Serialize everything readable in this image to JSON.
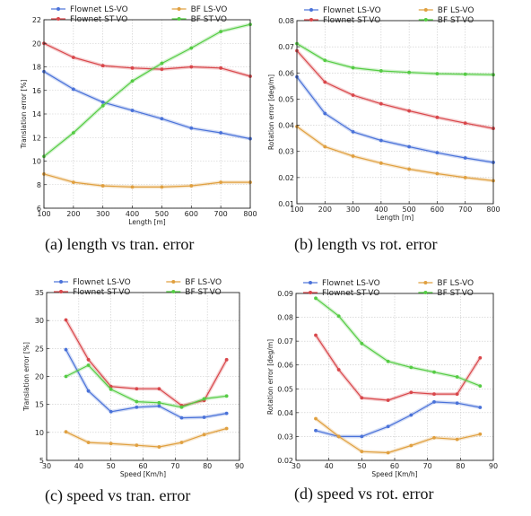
{
  "colors": {
    "flownet_ls": "#4a72d9",
    "flownet_st": "#d9474b",
    "bf_ls": "#e0a040",
    "bf_st": "#55cc44"
  },
  "chart_data": [
    {
      "id": "a",
      "type": "line",
      "caption": "(a) length vs tran. error",
      "xlabel": "Length [m]",
      "ylabel": "Translation error [%]",
      "xlim": [
        100,
        800
      ],
      "ylim": [
        6,
        22
      ],
      "xticks": [
        100,
        200,
        300,
        400,
        500,
        600,
        700,
        800
      ],
      "yticks": [
        6,
        8,
        10,
        12,
        14,
        16,
        18,
        20,
        22
      ],
      "ytick_decimals": 0,
      "grid": true,
      "legend": "top",
      "x": [
        100,
        200,
        300,
        400,
        500,
        600,
        700,
        800
      ],
      "series": [
        {
          "name": "Flownet LS-VO",
          "color": "#4a72d9",
          "values": [
            17.6,
            16.1,
            15.0,
            14.3,
            13.6,
            12.8,
            12.4,
            11.9
          ]
        },
        {
          "name": "BF LS-VO",
          "color": "#e0a040",
          "values": [
            8.9,
            8.2,
            7.9,
            7.8,
            7.8,
            7.9,
            8.2,
            8.2
          ]
        },
        {
          "name": "Flownet ST-VO",
          "color": "#d9474b",
          "values": [
            20.0,
            18.8,
            18.1,
            17.9,
            17.8,
            18.0,
            17.9,
            17.2
          ]
        },
        {
          "name": "BF ST-VO",
          "color": "#55cc44",
          "values": [
            10.4,
            12.4,
            14.7,
            16.8,
            18.3,
            19.6,
            21.0,
            21.6
          ]
        }
      ]
    },
    {
      "id": "b",
      "type": "line",
      "caption": "(b) length vs rot. error",
      "xlabel": "Length [m]",
      "ylabel": "Rotation error [deg/m]",
      "xlim": [
        100,
        800
      ],
      "ylim": [
        0.01,
        0.08
      ],
      "xticks": [
        100,
        200,
        300,
        400,
        500,
        600,
        700,
        800
      ],
      "yticks": [
        0.01,
        0.02,
        0.03,
        0.04,
        0.05,
        0.06,
        0.07,
        0.08
      ],
      "ytick_decimals": 2,
      "grid": true,
      "legend": "top",
      "x": [
        100,
        200,
        300,
        400,
        500,
        600,
        700,
        800
      ],
      "series": [
        {
          "name": "Flownet LS-VO",
          "color": "#4a72d9",
          "values": [
            0.0585,
            0.0445,
            0.0375,
            0.0342,
            0.0318,
            0.0295,
            0.0275,
            0.0258
          ]
        },
        {
          "name": "BF LS-VO",
          "color": "#e0a040",
          "values": [
            0.0395,
            0.0318,
            0.0282,
            0.0255,
            0.0232,
            0.0215,
            0.02,
            0.0188
          ]
        },
        {
          "name": "Flownet ST-VO",
          "color": "#d9474b",
          "values": [
            0.0685,
            0.0565,
            0.0515,
            0.0482,
            0.0455,
            0.043,
            0.0408,
            0.0388
          ]
        },
        {
          "name": "BF ST-VO",
          "color": "#55cc44",
          "values": [
            0.0712,
            0.0648,
            0.062,
            0.0608,
            0.0602,
            0.0597,
            0.0595,
            0.0593
          ]
        }
      ]
    },
    {
      "id": "c",
      "type": "line",
      "caption": "(c) speed vs tran. error",
      "xlabel": "Speed [Km/h]",
      "ylabel": "Translation error [%]",
      "xlim": [
        30,
        90
      ],
      "ylim": [
        5,
        35
      ],
      "xticks": [
        30,
        40,
        50,
        60,
        70,
        80,
        90
      ],
      "yticks": [
        5,
        10,
        15,
        20,
        25,
        30,
        35
      ],
      "ytick_decimals": 0,
      "grid": true,
      "legend": "top",
      "x": [
        36,
        43,
        50,
        58,
        65,
        72,
        79,
        86
      ],
      "series": [
        {
          "name": "Flownet LS-VO",
          "color": "#4a72d9",
          "values": [
            24.8,
            17.4,
            13.7,
            14.5,
            14.7,
            12.6,
            12.7,
            13.4
          ]
        },
        {
          "name": "BF LS-VO",
          "color": "#e0a040",
          "values": [
            10.1,
            8.2,
            8.0,
            7.7,
            7.4,
            8.2,
            9.6,
            10.7
          ]
        },
        {
          "name": "Flownet ST-VO",
          "color": "#d9474b",
          "values": [
            30.1,
            23.0,
            18.2,
            17.8,
            17.8,
            14.8,
            15.7,
            23.0
          ]
        },
        {
          "name": "BF ST-VO",
          "color": "#55cc44",
          "values": [
            20.0,
            22.0,
            17.7,
            15.5,
            15.3,
            14.5,
            16.0,
            16.5
          ]
        }
      ]
    },
    {
      "id": "d",
      "type": "line",
      "caption": "(d) speed vs rot. error",
      "xlabel": "Speed [Km/h]",
      "ylabel": "Rotation error [deg/m]",
      "xlim": [
        30,
        90
      ],
      "ylim": [
        0.02,
        0.09
      ],
      "xticks": [
        30,
        40,
        50,
        60,
        70,
        80,
        90
      ],
      "yticks": [
        0.02,
        0.03,
        0.04,
        0.05,
        0.06,
        0.07,
        0.08,
        0.09
      ],
      "ytick_decimals": 2,
      "grid": true,
      "legend": "top",
      "x": [
        36,
        43,
        50,
        58,
        65,
        72,
        79,
        86
      ],
      "series": [
        {
          "name": "Flownet LS-VO",
          "color": "#4a72d9",
          "values": [
            0.0325,
            0.03,
            0.03,
            0.0342,
            0.039,
            0.0445,
            0.044,
            0.0422
          ]
        },
        {
          "name": "BF LS-VO",
          "color": "#e0a040",
          "values": [
            0.0375,
            0.03,
            0.0237,
            0.0232,
            0.0262,
            0.0295,
            0.0288,
            0.031
          ]
        },
        {
          "name": "Flownet ST-VO",
          "color": "#d9474b",
          "values": [
            0.0725,
            0.058,
            0.0462,
            0.0452,
            0.0485,
            0.0478,
            0.0478,
            0.063
          ]
        },
        {
          "name": "BF ST-VO",
          "color": "#55cc44",
          "values": [
            0.088,
            0.0805,
            0.069,
            0.0615,
            0.059,
            0.057,
            0.055,
            0.0512
          ]
        }
      ]
    }
  ]
}
